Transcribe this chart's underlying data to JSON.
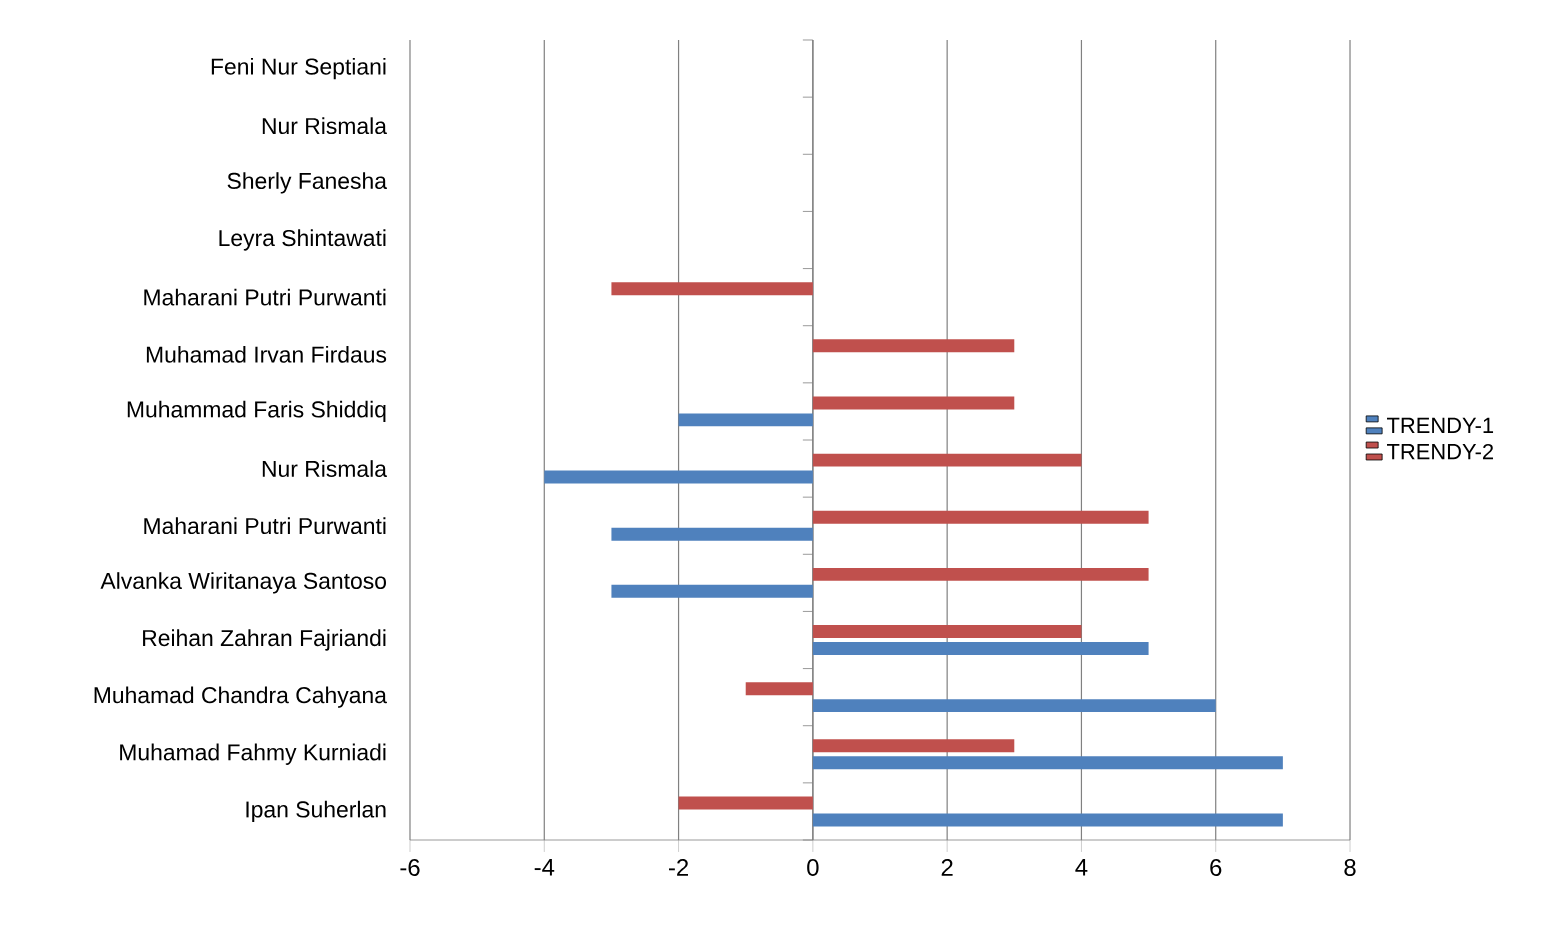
{
  "chart_data": {
    "type": "bar",
    "orientation": "horizontal",
    "categories": [
      "Feni Nur Septiani",
      "Nur Rismala",
      "Sherly Fanesha",
      "Leyra Shintawati",
      "Maharani Putri Purwanti",
      "Muhamad  Irvan Firdaus",
      "Muhammad Faris Shiddiq",
      "Nur Rismala",
      "Maharani Putri Purwanti",
      "Alvanka Wiritanaya Santoso",
      "Reihan Zahran Fajriandi",
      "Muhamad Chandra Cahyana",
      "Muhamad Fahmy Kurniadi",
      "Ipan Suherlan"
    ],
    "series": [
      {
        "name": "TRENDY-1",
        "color": "#4f81bd",
        "values": [
          0,
          0,
          0,
          0,
          0,
          0,
          -2,
          -4,
          -3,
          -3,
          5,
          6,
          7,
          7
        ]
      },
      {
        "name": "TRENDY-2",
        "color": "#c0504d",
        "values": [
          0,
          0,
          0,
          0,
          -3,
          3,
          3,
          4,
          5,
          5,
          4,
          -1,
          3,
          -2
        ]
      }
    ],
    "xlim": [
      -6,
      8
    ],
    "xticks": [
      -6,
      -4,
      -2,
      0,
      2,
      4,
      6,
      8
    ],
    "grid": "x",
    "legend": "right"
  }
}
